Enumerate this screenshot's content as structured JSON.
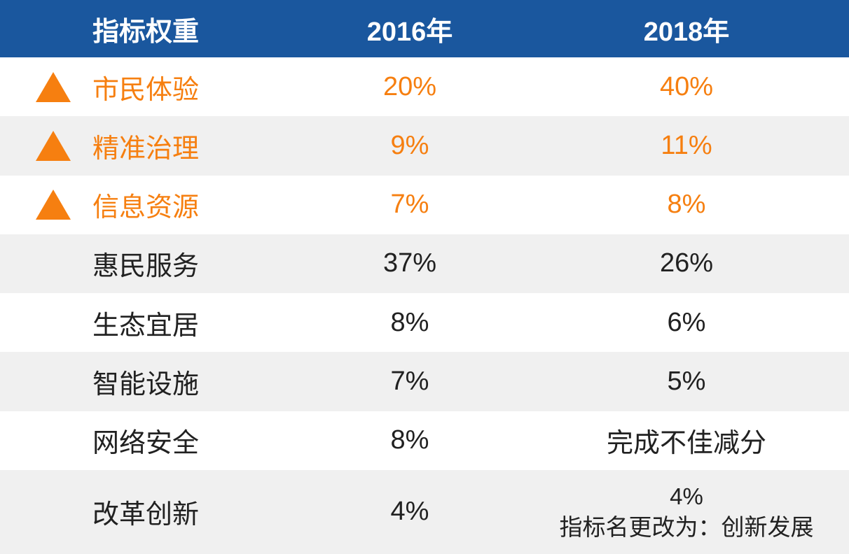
{
  "colors": {
    "header_bg": "#1A579E",
    "header_text": "#FFFFFF",
    "highlight": "#F67F10",
    "row_alt": "#F0F0F0",
    "row_bg": "#FFFFFF",
    "text": "#212121"
  },
  "table": {
    "headers": [
      "指标权重",
      "2016年",
      "2018年"
    ],
    "rows": [
      {
        "indicator": "市民体验",
        "y2016": "20%",
        "y2018": "40%",
        "marker": "up-triangle",
        "highlighted": true
      },
      {
        "indicator": "精准治理",
        "y2016": "9%",
        "y2018": "11%",
        "marker": "up-triangle",
        "highlighted": true
      },
      {
        "indicator": "信息资源",
        "y2016": "7%",
        "y2018": "8%",
        "marker": "up-triangle",
        "highlighted": true
      },
      {
        "indicator": "惠民服务",
        "y2016": "37%",
        "y2018": "26%",
        "marker": null,
        "highlighted": false
      },
      {
        "indicator": "生态宜居",
        "y2016": "8%",
        "y2018": "6%",
        "marker": null,
        "highlighted": false
      },
      {
        "indicator": "智能设施",
        "y2016": "7%",
        "y2018": "5%",
        "marker": null,
        "highlighted": false
      },
      {
        "indicator": "网络安全",
        "y2016": "8%",
        "y2018": "完成不佳减分",
        "marker": null,
        "highlighted": false
      },
      {
        "indicator": "改革创新",
        "y2016": "4%",
        "y2018": "4%",
        "y2018_note": "指标名更改为：创新发展",
        "marker": null,
        "highlighted": false
      }
    ]
  },
  "chart_data": {
    "type": "table",
    "columns": [
      "指标权重",
      "2016年",
      "2018年"
    ],
    "rows": [
      [
        "市民体验",
        "20%",
        "40%"
      ],
      [
        "精准治理",
        "9%",
        "11%"
      ],
      [
        "信息资源",
        "7%",
        "8%"
      ],
      [
        "惠民服务",
        "37%",
        "26%"
      ],
      [
        "生态宜居",
        "8%",
        "6%"
      ],
      [
        "智能设施",
        "7%",
        "5%"
      ],
      [
        "网络安全",
        "8%",
        "完成不佳减分"
      ],
      [
        "改革创新",
        "4%",
        "4% 指标名更改为：创新发展"
      ]
    ],
    "highlighted_rows": [
      0,
      1,
      2
    ],
    "row_markers": [
      "up-triangle",
      "up-triangle",
      "up-triangle",
      null,
      null,
      null,
      null,
      null
    ],
    "legend_position": "none",
    "grid": false
  }
}
